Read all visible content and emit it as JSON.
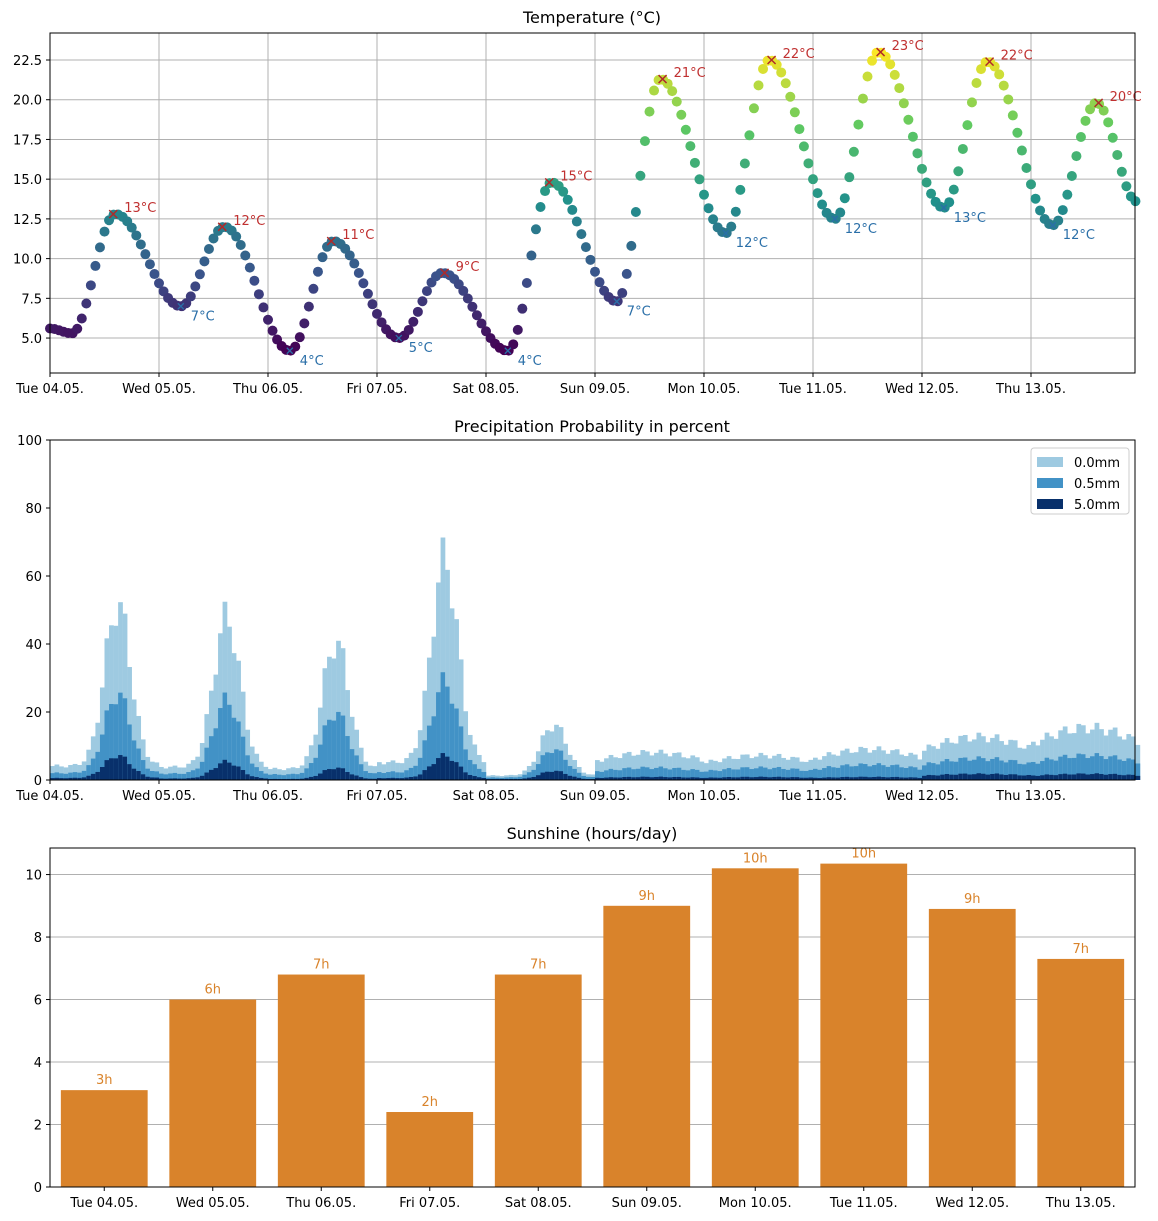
{
  "chart_data": [
    {
      "type": "scatter",
      "title": "Temperature (°C)",
      "xlabel": "",
      "ylabel": "",
      "ylim": [
        2.8,
        24.2
      ],
      "x_ticks": [
        "Tue 04.05.",
        "Wed 05.05.",
        "Thu 06.05.",
        "Fri 07.05.",
        "Sat 08.05.",
        "Sun 09.05.",
        "Mon 10.05.",
        "Tue 11.05.",
        "Wed 12.05.",
        "Thu 13.05."
      ],
      "y_ticks": [
        "5.0",
        "7.5",
        "10.0",
        "12.5",
        "15.0",
        "17.5",
        "20.0",
        "22.5"
      ],
      "y_tick_values": [
        5.0,
        7.5,
        10.0,
        12.5,
        15.0,
        17.5,
        20.0,
        22.5
      ],
      "grid": true,
      "colormap": "viridis",
      "day_extremes": [
        {
          "day": "Tue 04.05.",
          "min": 5.3,
          "max": 12.8
        },
        {
          "day": "Wed 05.05.",
          "min": 7.0,
          "max": 12.0
        },
        {
          "day": "Thu 06.05.",
          "min": 4.2,
          "max": 11.1
        },
        {
          "day": "Fri 07.05.",
          "min": 5.0,
          "max": 9.1
        },
        {
          "day": "Sat 08.05.",
          "min": 4.2,
          "max": 14.8
        },
        {
          "day": "Sun 09.05.",
          "min": 7.3,
          "max": 21.3
        },
        {
          "day": "Mon 10.05.",
          "min": 11.6,
          "max": 22.5
        },
        {
          "day": "Tue 11.05.",
          "min": 12.5,
          "max": 23.0
        },
        {
          "day": "Wed 12.05.",
          "min": 13.2,
          "max": 22.4
        },
        {
          "day": "Thu 13.05.",
          "min": 12.1,
          "max": 19.8
        }
      ],
      "min_labels": [
        {
          "day_pos": 1.2,
          "value": 7.0,
          "label": "7°C"
        },
        {
          "day_pos": 2.2,
          "value": 4.2,
          "label": "4°C"
        },
        {
          "day_pos": 3.2,
          "value": 5.0,
          "label": "5°C"
        },
        {
          "day_pos": 4.2,
          "value": 4.2,
          "label": "4°C"
        },
        {
          "day_pos": 5.2,
          "value": 7.3,
          "label": "7°C"
        },
        {
          "day_pos": 6.2,
          "value": 11.6,
          "label": "12°C"
        },
        {
          "day_pos": 7.2,
          "value": 12.5,
          "label": "12°C"
        },
        {
          "day_pos": 8.2,
          "value": 13.2,
          "label": "13°C"
        },
        {
          "day_pos": 9.2,
          "value": 12.1,
          "label": "12°C"
        }
      ],
      "max_labels": [
        {
          "day_pos": 0.58,
          "value": 12.8,
          "label": "13°C"
        },
        {
          "day_pos": 1.58,
          "value": 12.0,
          "label": "12°C"
        },
        {
          "day_pos": 2.58,
          "value": 11.1,
          "label": "11°C"
        },
        {
          "day_pos": 3.62,
          "value": 9.1,
          "label": "9°C"
        },
        {
          "day_pos": 4.58,
          "value": 14.8,
          "label": "15°C"
        },
        {
          "day_pos": 5.62,
          "value": 21.3,
          "label": "21°C"
        },
        {
          "day_pos": 6.62,
          "value": 22.5,
          "label": "22°C"
        },
        {
          "day_pos": 7.62,
          "value": 23.0,
          "label": "23°C"
        },
        {
          "day_pos": 8.62,
          "value": 22.4,
          "label": "22°C"
        },
        {
          "day_pos": 9.62,
          "value": 19.8,
          "label": "20°C"
        }
      ],
      "label_colors": {
        "max": "#c03030",
        "min": "#2a6fa8"
      }
    },
    {
      "type": "area",
      "title": "Precipitation Probability in percent",
      "xlabel": "",
      "ylabel": "",
      "ylim": [
        0,
        100
      ],
      "x_ticks": [
        "Tue 04.05.",
        "Wed 05.05.",
        "Thu 06.05.",
        "Fri 07.05.",
        "Sat 08.05.",
        "Sun 09.05.",
        "Mon 10.05.",
        "Tue 11.05.",
        "Wed 12.05.",
        "Thu 13.05."
      ],
      "y_ticks": [
        "0",
        "20",
        "40",
        "60",
        "80",
        "100"
      ],
      "y_tick_values": [
        0,
        20,
        40,
        60,
        80,
        100
      ],
      "grid": false,
      "legend_position": "top-right",
      "series": [
        {
          "name": "0.0mm",
          "color": "#9ecae1"
        },
        {
          "name": "0.5mm",
          "color": "#4292c6"
        },
        {
          "name": "5.0mm",
          "color": "#08306b"
        }
      ],
      "day_peaks": [
        {
          "day": "Tue 04.05.",
          "peak_0mm": 57,
          "peak_0_5mm": 28,
          "peak_5mm": 8
        },
        {
          "day": "Wed 05.05.",
          "peak_0mm": 53,
          "peak_0_5mm": 26,
          "peak_5mm": 6
        },
        {
          "day": "Thu 06.05.",
          "peak_0mm": 45,
          "peak_0_5mm": 22,
          "peak_5mm": 4
        },
        {
          "day": "Fri 07.05.",
          "peak_0mm": 72,
          "peak_0_5mm": 32,
          "peak_5mm": 8
        },
        {
          "day": "Sat 08.05.",
          "peak_0mm": 18,
          "peak_0_5mm": 10,
          "peak_5mm": 3
        },
        {
          "day": "Sun 09.05.",
          "peak_0mm": 9,
          "peak_0_5mm": 4,
          "peak_5mm": 1
        },
        {
          "day": "Mon 10.05.",
          "peak_0mm": 8,
          "peak_0_5mm": 4,
          "peak_5mm": 1
        },
        {
          "day": "Tue 11.05.",
          "peak_0mm": 10,
          "peak_0_5mm": 5,
          "peak_5mm": 1
        },
        {
          "day": "Wed 12.05.",
          "peak_0mm": 14,
          "peak_0_5mm": 7,
          "peak_5mm": 2
        },
        {
          "day": "Thu 13.05.",
          "peak_0mm": 17,
          "peak_0_5mm": 8,
          "peak_5mm": 2
        }
      ]
    },
    {
      "type": "bar",
      "title": "Sunshine (hours/day)",
      "xlabel": "",
      "ylabel": "",
      "ylim": [
        0,
        10.85
      ],
      "categories": [
        "Tue 04.05.",
        "Wed 05.05.",
        "Thu 06.05.",
        "Fri 07.05.",
        "Sat 08.05.",
        "Sun 09.05.",
        "Mon 10.05.",
        "Tue 11.05.",
        "Wed 12.05.",
        "Thu 13.05."
      ],
      "values": [
        3.1,
        6.0,
        6.8,
        2.4,
        6.8,
        9.0,
        10.2,
        10.35,
        8.9,
        7.3
      ],
      "data_labels": [
        "3h",
        "6h",
        "7h",
        "2h",
        "7h",
        "9h",
        "10h",
        "10h",
        "9h",
        "7h"
      ],
      "y_ticks": [
        "0",
        "2",
        "4",
        "6",
        "8",
        "10"
      ],
      "y_tick_values": [
        0,
        2,
        4,
        6,
        8,
        10
      ],
      "grid": true,
      "bar_color": "#d9832b",
      "label_color": "#d9832b"
    }
  ]
}
